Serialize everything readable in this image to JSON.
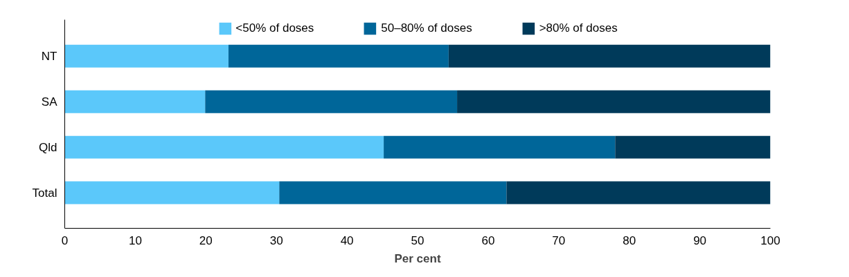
{
  "chart_data": {
    "type": "bar",
    "orientation": "horizontal",
    "stacked": true,
    "categories": [
      "NT",
      "SA",
      "Qld",
      "Total"
    ],
    "series": [
      {
        "name": "<50% of doses",
        "color": "#5bc8fa",
        "values": [
          23.2,
          19.9,
          45.2,
          30.4
        ]
      },
      {
        "name": "50–80% of doses",
        "color": "#006699",
        "values": [
          31.2,
          35.7,
          32.8,
          32.2
        ]
      },
      {
        "name": ">80% of doses",
        "color": "#003a5a",
        "values": [
          45.6,
          44.4,
          22.0,
          37.4
        ]
      }
    ],
    "xlabel": "Per cent",
    "xlim": [
      0,
      100
    ],
    "xticks": [
      0,
      10,
      20,
      30,
      40,
      50,
      60,
      70,
      80,
      90,
      100
    ],
    "grid": false,
    "legend": "top"
  }
}
